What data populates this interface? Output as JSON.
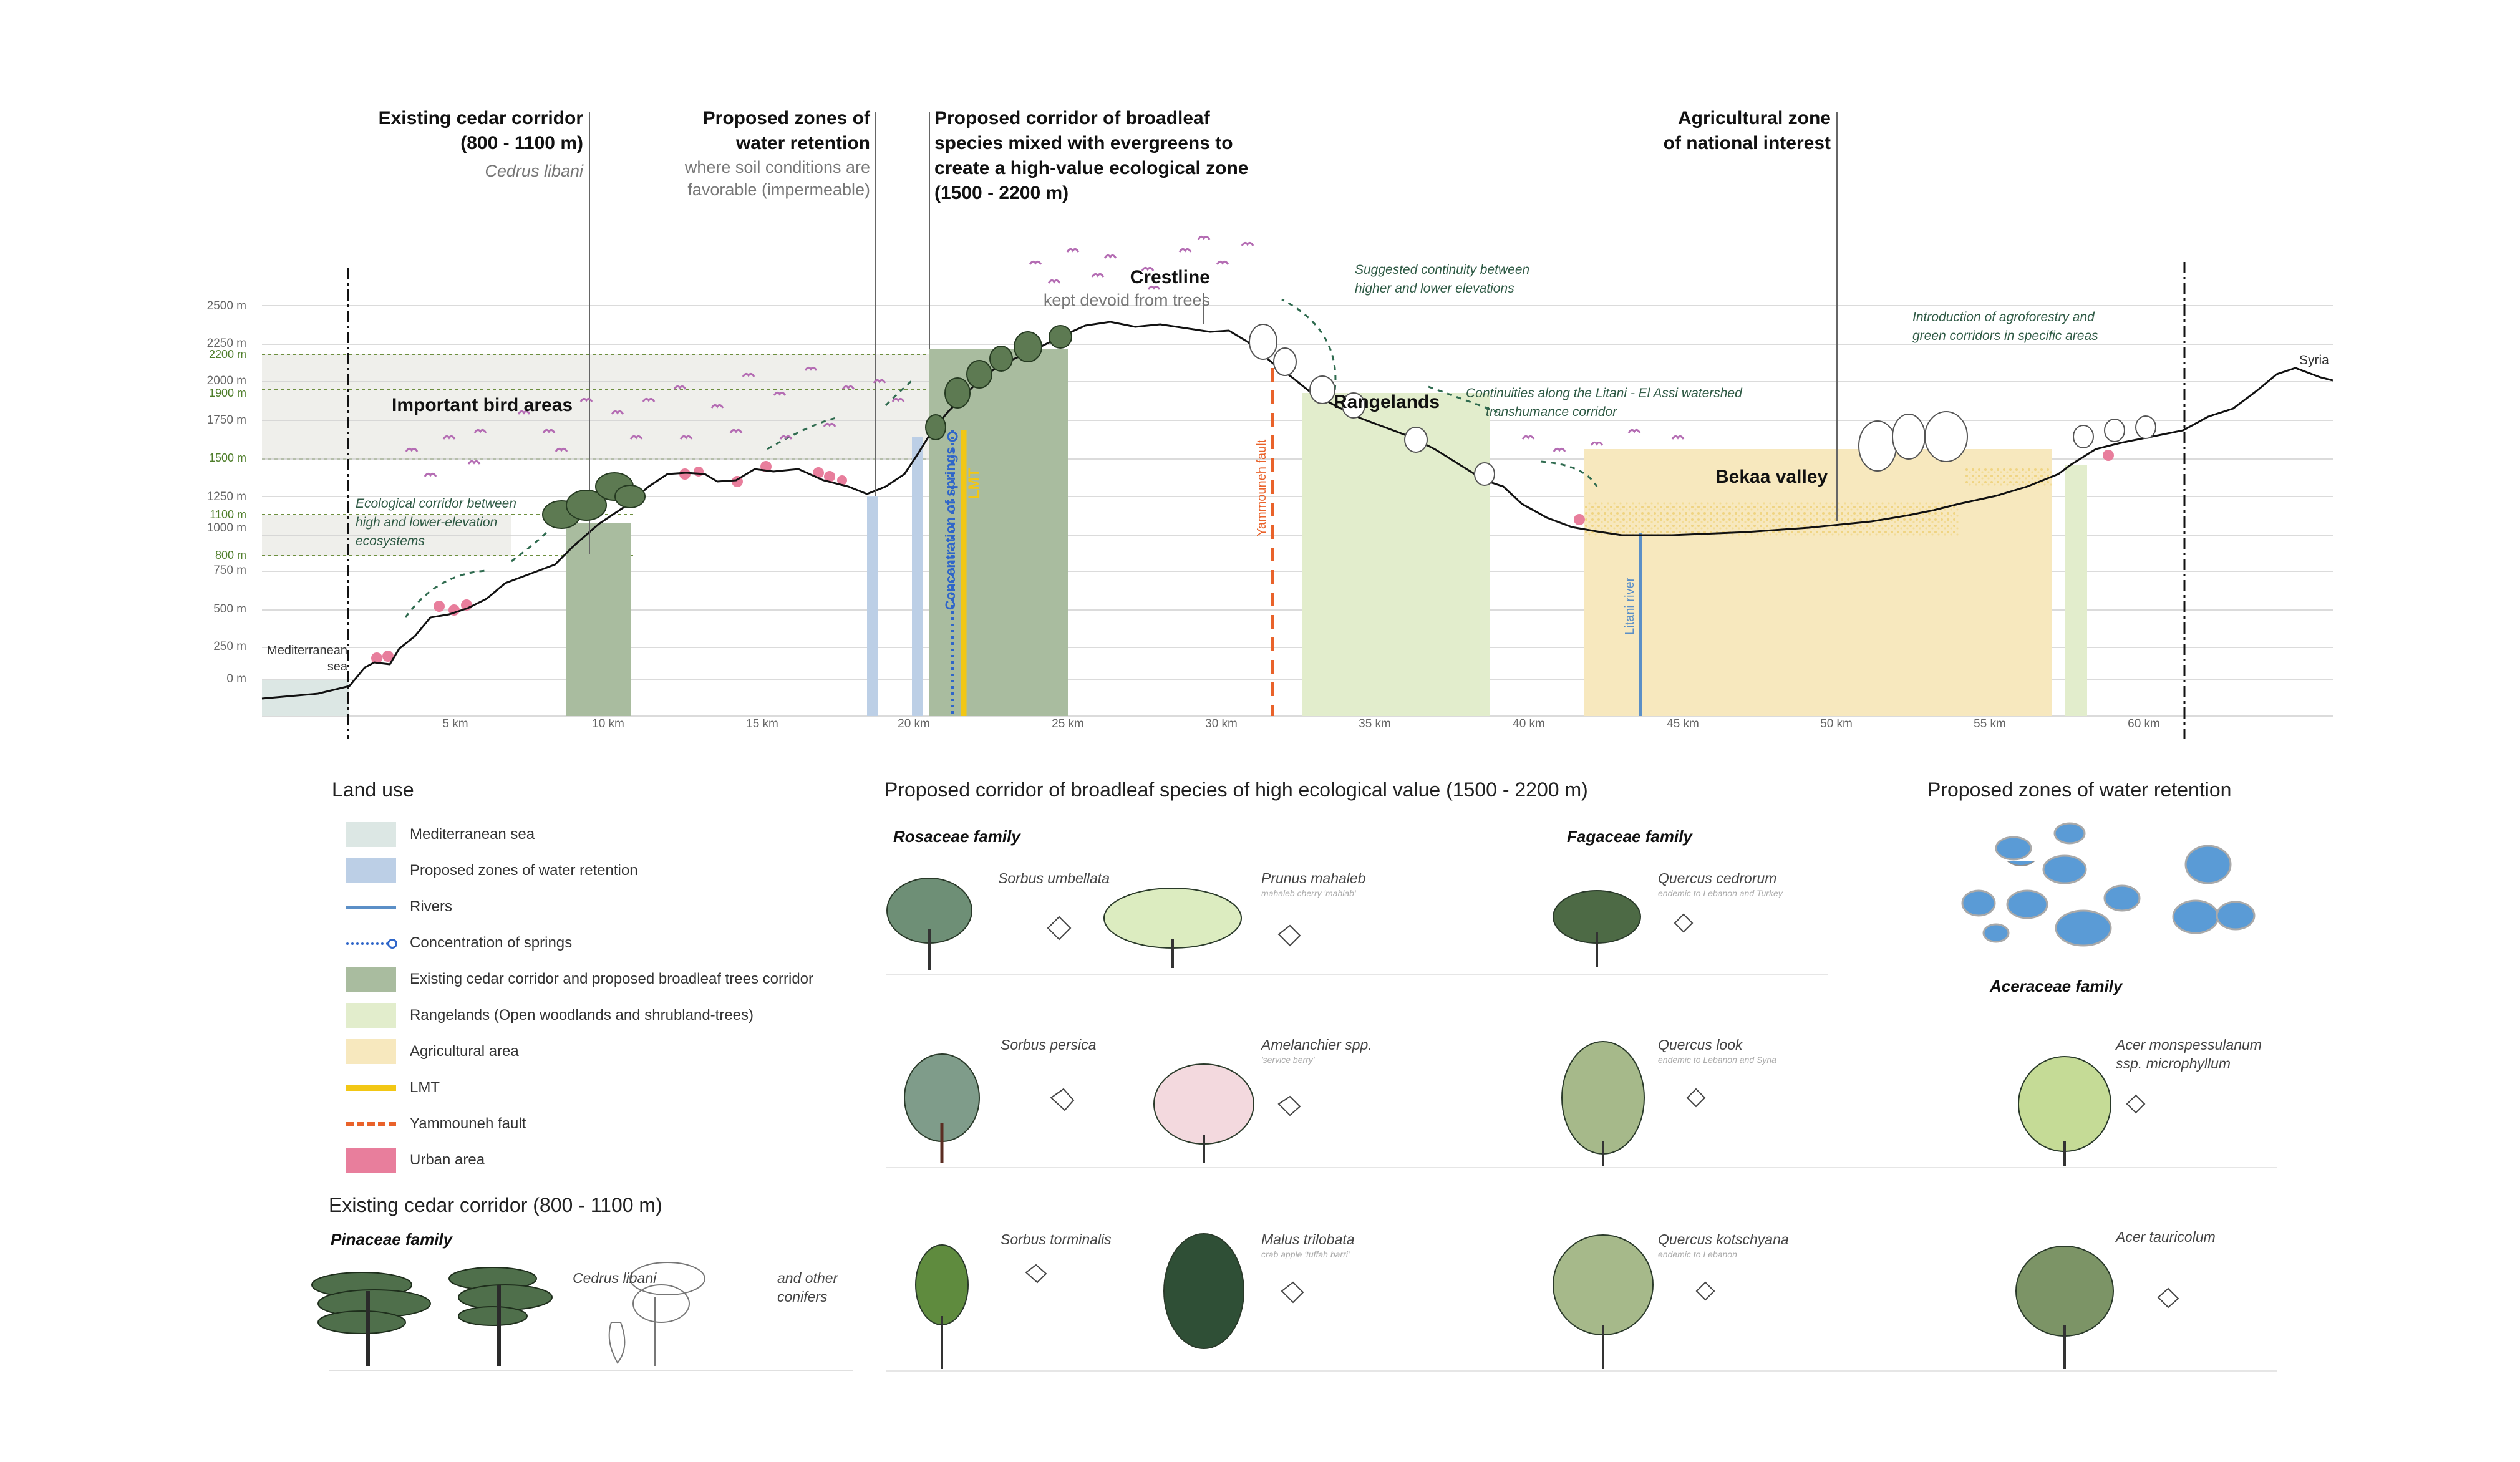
{
  "colors": {
    "sea": "#dce7e4",
    "water_retention": "#bccfe6",
    "river": "#5b8fc7",
    "springs": "#2f66c9",
    "cedar": "#a9bc9f",
    "rangelands": "#e2edcc",
    "agricultural": "#f7e8be",
    "lmt": "#f2c714",
    "fault": "#e9622a",
    "urban": "#e87e9c",
    "bird": "#b46cb3",
    "annotation": "#2f6b4f",
    "band": "#efefeb",
    "gridline": "#c6c6c6"
  },
  "section": {
    "y_axis_labels": [
      "2500 m",
      "2250 m",
      "2200 m",
      "2000 m",
      "1900 m",
      "1750 m",
      "1500 m",
      "1250 m",
      "1100 m",
      "1000 m",
      "800 m",
      "750 m",
      "500 m",
      "250 m",
      "0 m"
    ],
    "x_axis_labels": [
      "5 km",
      "10 km",
      "15 km",
      "20 km",
      "25 km",
      "30 km",
      "35 km",
      "40 km",
      "45 km",
      "50 km",
      "55 km",
      "60 km"
    ],
    "headers": {
      "cedar": {
        "line1": "Existing cedar corridor",
        "line2": "(800 - 1100 m)",
        "species": "Cedrus libani"
      },
      "water": {
        "line1": "Proposed zones of",
        "line2": "water retention",
        "sub1": "where soil conditions are",
        "sub2": "favorable (impermeable)"
      },
      "broadleaf": {
        "line1": "Proposed corridor of broadleaf",
        "line2": "species mixed with evergreens to",
        "line3": "create a high-value ecological zone",
        "line4": "(1500 - 2200 m)"
      },
      "agri": {
        "line1": "Agricultural zone",
        "line2": "of national  interest"
      }
    },
    "labels": {
      "crestline": "Crestline",
      "crestline_sub": "kept devoid from trees",
      "important_birds": "Important bird areas",
      "rangelands": "Rangelands",
      "bekaa": "Bekaa valley",
      "syria": "Syria",
      "sea_line1": "Mediterranean",
      "sea_line2": "sea",
      "springs": "Concentration of springs",
      "lmt": "LMT",
      "fault": "Yammouneh fault",
      "river": "Litani river"
    },
    "notes": {
      "eco_corridor": [
        "Ecological corridor between",
        "high and lower-elevation",
        "ecosystems"
      ],
      "continuity": [
        "Suggested continuity between",
        "higher and lower elevations"
      ],
      "litani": [
        "Continuities along the Litani - El Assi watershed",
        "transhumance corridor"
      ],
      "agroforestry": [
        "Introduction of agroforestry and",
        "green corridors in specific areas"
      ]
    }
  },
  "legend": {
    "title": "Land use",
    "items": [
      {
        "label": "Mediterranean sea",
        "kind": "sea"
      },
      {
        "label": "Proposed zones of water retention",
        "kind": "water"
      },
      {
        "label": "Rivers",
        "kind": "river"
      },
      {
        "label": "Concentration of springs",
        "kind": "springs"
      },
      {
        "label": "Existing cedar corridor and proposed broadleaf trees corridor",
        "kind": "cedar"
      },
      {
        "label": "Rangelands (Open woodlands and shrubland-trees)",
        "kind": "range"
      },
      {
        "label": "Agricultural area",
        "kind": "agri"
      },
      {
        "label": "LMT",
        "kind": "lmt"
      },
      {
        "label": "Yammouneh fault",
        "kind": "fault"
      },
      {
        "label": "Urban area",
        "kind": "urban"
      }
    ]
  },
  "cedar_panel": {
    "title": "Existing cedar corridor (800 - 1100 m)",
    "family": "Pinaceae family",
    "species": "Cedrus libani",
    "other": [
      "and other",
      "conifers"
    ]
  },
  "broadleaf_panel": {
    "title": "Proposed corridor of broadleaf species of high  ecological value (1500 - 2200 m)",
    "family_rosaceae": "Rosaceae family",
    "family_fagaceae": "Fagaceae family",
    "species": [
      {
        "name": "Sorbus umbellata",
        "sub": ""
      },
      {
        "name": "Prunus mahaleb",
        "sub": "mahaleb cherry 'mahlab'"
      },
      {
        "name": "Quercus cedrorum",
        "sub": "endemic to Lebanon and Turkey"
      },
      {
        "name": "Sorbus persica",
        "sub": ""
      },
      {
        "name": "Amelanchier spp.",
        "sub": "'service berry'"
      },
      {
        "name": "Quercus look",
        "sub": "endemic to Lebanon and Syria"
      },
      {
        "name": "Sorbus torminalis",
        "sub": ""
      },
      {
        "name": "Malus trilobata",
        "sub": "crab apple 'tuffah barri'"
      },
      {
        "name": "Quercus kotschyana",
        "sub": "endemic to Lebanon"
      }
    ]
  },
  "water_panel": {
    "title": "Proposed zones of water retention",
    "family": "Aceraceae family",
    "species": [
      {
        "name": "Acer monspessulanum",
        "name2": "ssp. microphyllum"
      },
      {
        "name": "Acer tauricolum",
        "name2": ""
      }
    ]
  }
}
